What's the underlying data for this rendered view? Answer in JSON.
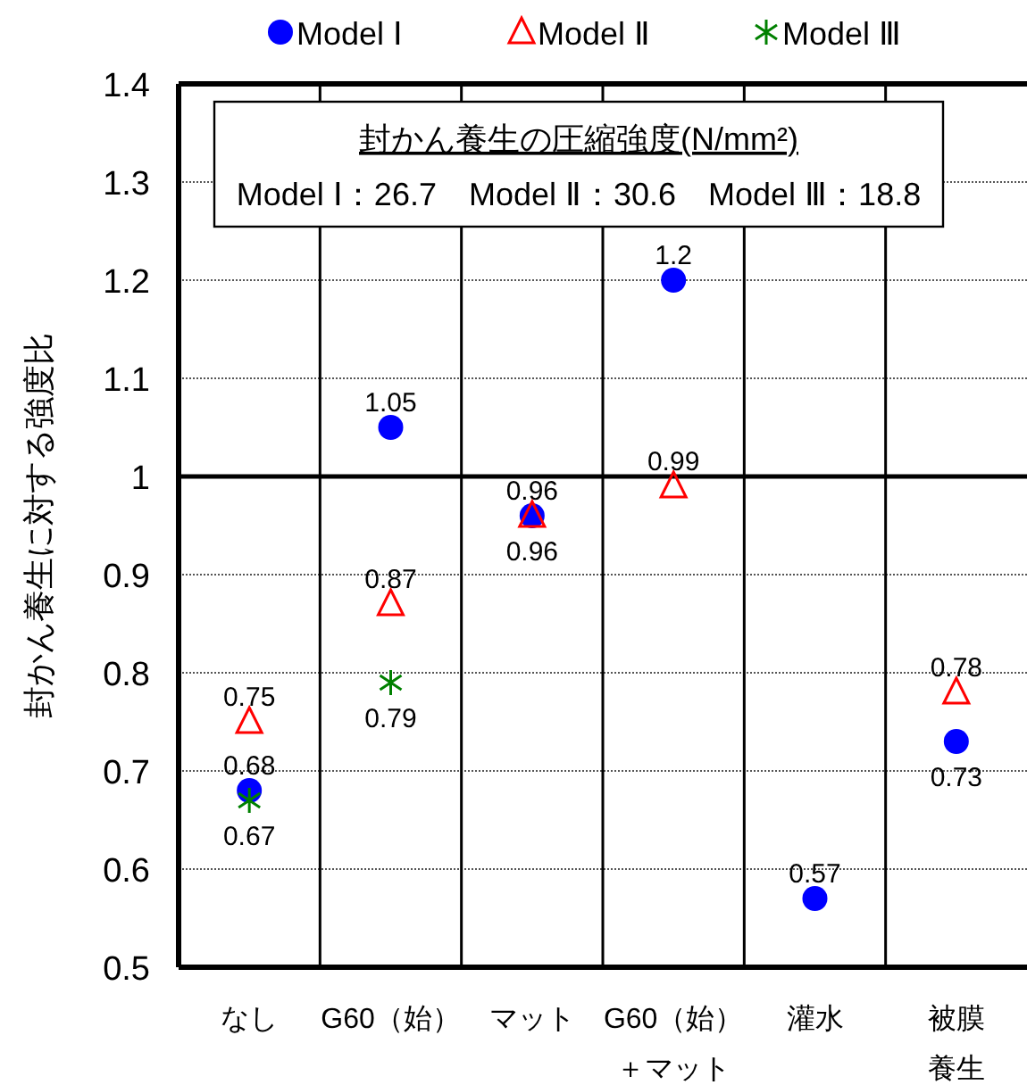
{
  "chart_data": {
    "type": "scatter",
    "ylabel": "封かん養生に対する強度比",
    "categories": [
      "なし",
      "G60（始）",
      "マット",
      "G60（始）＋マット",
      "灌水",
      "被膜養生"
    ],
    "series": [
      {
        "name": "Model Ⅰ",
        "color": "#0000ff",
        "marker": "circle",
        "values": [
          0.68,
          1.05,
          0.96,
          1.2,
          0.57,
          0.73
        ]
      },
      {
        "name": "Model Ⅱ",
        "color": "#ff0000",
        "marker": "triangle",
        "values": [
          0.75,
          0.87,
          0.96,
          0.99,
          null,
          0.78
        ]
      },
      {
        "name": "Model Ⅲ",
        "color": "#008000",
        "marker": "cross",
        "values": [
          0.67,
          0.79,
          null,
          null,
          null,
          null
        ]
      }
    ],
    "ylim": [
      0.5,
      1.4
    ],
    "yticks": [
      0.5,
      0.6,
      0.7,
      0.8,
      0.9,
      {
        "value": 1.0,
        "label": "1"
      },
      1.1,
      1.2,
      1.3,
      1.4
    ],
    "ref_lines": [
      {
        "axis": "y",
        "value": 1.0
      }
    ],
    "annotations": [
      "封かん養生の圧縮強度(N/mm²)",
      "Model Ⅰ：26.7　Model Ⅱ：30.6　Model Ⅲ：18.8"
    ],
    "data_labels": true,
    "grid": true,
    "legend": "top"
  }
}
